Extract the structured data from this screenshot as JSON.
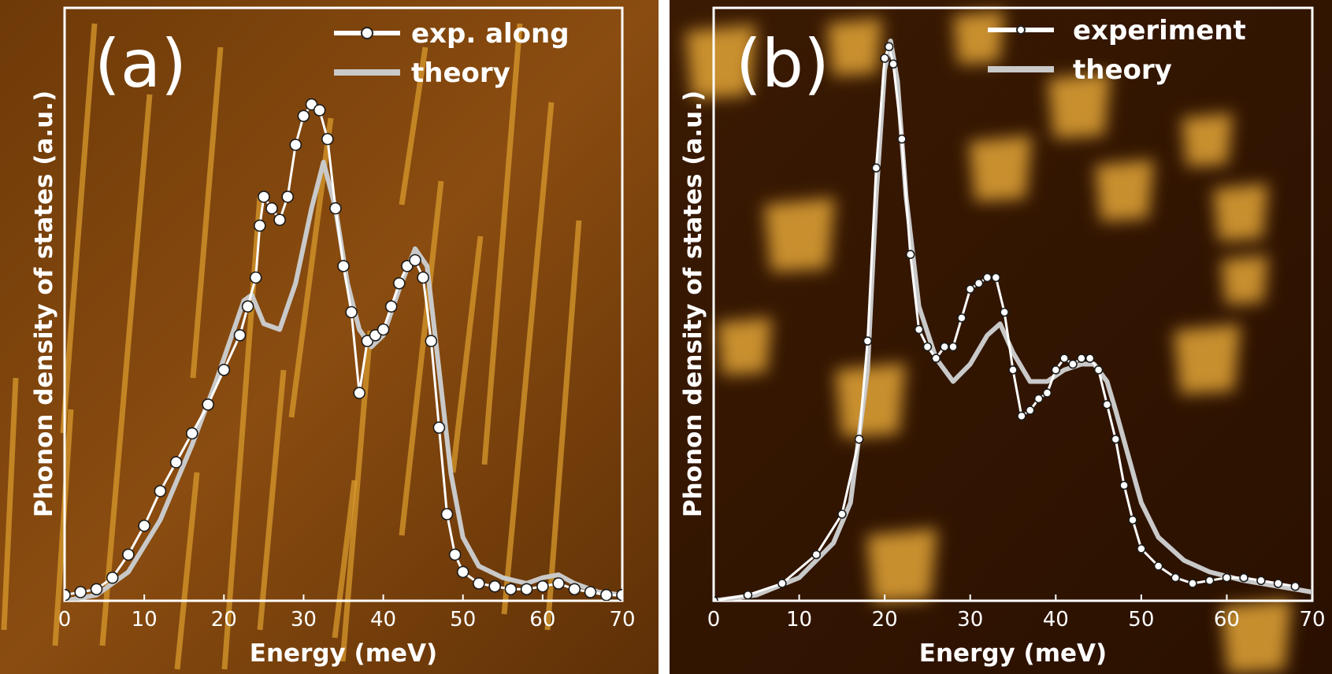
{
  "chart_data": [
    {
      "type": "line",
      "panel_label": "(a)",
      "xlabel": "Energy (meV)",
      "ylabel": "Phonon density of states (a.u.)",
      "xlim": [
        0,
        70
      ],
      "ylim": [
        0,
        1.0
      ],
      "xticks": [
        0,
        10,
        20,
        30,
        40,
        50,
        60,
        70
      ],
      "legend_position": "top-right",
      "background": "scanning-tunneling-microscopy image, orange/brown",
      "colors": {
        "background_dark": "#5a2c05",
        "background_mid": "#8a4a0c",
        "streak": "#d79a2a",
        "experiment": "#ffffff",
        "theory": "#c9c9c9"
      },
      "series": [
        {
          "name": "exp. along",
          "style": "white line with open circle markers",
          "points": [
            [
              0,
              0.01
            ],
            [
              2,
              0.015
            ],
            [
              4,
              0.02
            ],
            [
              6,
              0.04
            ],
            [
              8,
              0.08
            ],
            [
              10,
              0.13
            ],
            [
              12,
              0.19
            ],
            [
              14,
              0.24
            ],
            [
              16,
              0.29
            ],
            [
              18,
              0.34
            ],
            [
              20,
              0.4
            ],
            [
              22,
              0.46
            ],
            [
              23,
              0.51
            ],
            [
              24,
              0.56
            ],
            [
              24.5,
              0.65
            ],
            [
              25,
              0.7
            ],
            [
              26,
              0.68
            ],
            [
              27,
              0.66
            ],
            [
              28,
              0.7
            ],
            [
              29,
              0.79
            ],
            [
              30,
              0.84
            ],
            [
              31,
              0.86
            ],
            [
              32,
              0.85
            ],
            [
              33,
              0.8
            ],
            [
              34,
              0.68
            ],
            [
              35,
              0.58
            ],
            [
              36,
              0.5
            ],
            [
              37,
              0.36
            ],
            [
              38,
              0.45
            ],
            [
              39,
              0.46
            ],
            [
              40,
              0.47
            ],
            [
              41,
              0.51
            ],
            [
              42,
              0.55
            ],
            [
              43,
              0.58
            ],
            [
              44,
              0.59
            ],
            [
              45,
              0.56
            ],
            [
              46,
              0.45
            ],
            [
              47,
              0.3
            ],
            [
              48,
              0.15
            ],
            [
              49,
              0.08
            ],
            [
              50,
              0.05
            ],
            [
              52,
              0.03
            ],
            [
              54,
              0.025
            ],
            [
              56,
              0.02
            ],
            [
              58,
              0.02
            ],
            [
              60,
              0.025
            ],
            [
              62,
              0.03
            ],
            [
              64,
              0.02
            ],
            [
              66,
              0.015
            ],
            [
              68,
              0.01
            ],
            [
              70,
              0.01
            ]
          ]
        },
        {
          "name": "theory",
          "style": "thick light-grey line",
          "points": [
            [
              0,
              0.0
            ],
            [
              4,
              0.01
            ],
            [
              8,
              0.05
            ],
            [
              12,
              0.14
            ],
            [
              16,
              0.27
            ],
            [
              19,
              0.38
            ],
            [
              21,
              0.46
            ],
            [
              22.5,
              0.52
            ],
            [
              23.5,
              0.53
            ],
            [
              25,
              0.48
            ],
            [
              27,
              0.47
            ],
            [
              29,
              0.55
            ],
            [
              31,
              0.68
            ],
            [
              32.5,
              0.76
            ],
            [
              34,
              0.68
            ],
            [
              35.5,
              0.55
            ],
            [
              37,
              0.47
            ],
            [
              38.5,
              0.44
            ],
            [
              40,
              0.46
            ],
            [
              42,
              0.54
            ],
            [
              44,
              0.61
            ],
            [
              45.5,
              0.58
            ],
            [
              47,
              0.4
            ],
            [
              48.5,
              0.22
            ],
            [
              50,
              0.11
            ],
            [
              52,
              0.06
            ],
            [
              55,
              0.04
            ],
            [
              58,
              0.03
            ],
            [
              60,
              0.04
            ],
            [
              62,
              0.045
            ],
            [
              64,
              0.03
            ],
            [
              67,
              0.015
            ],
            [
              70,
              0.01
            ]
          ]
        }
      ]
    },
    {
      "type": "line",
      "panel_label": "(b)",
      "xlabel": "Energy (meV)",
      "ylabel": "Phonon density of states (a.u.)",
      "xlim": [
        0,
        70
      ],
      "ylim": [
        0,
        1.0
      ],
      "xticks": [
        0,
        10,
        20,
        30,
        40,
        50,
        60,
        70
      ],
      "legend_position": "top-right",
      "background": "scanning-tunneling-microscopy image with triangular islands",
      "colors": {
        "background_dark": "#2b1200",
        "island": "#e0a030",
        "experiment": "#ffffff",
        "theory": "#c9c9c9"
      },
      "series": [
        {
          "name": "experiment",
          "style": "white line with small dot markers",
          "points": [
            [
              0,
              0.0
            ],
            [
              4,
              0.01
            ],
            [
              8,
              0.03
            ],
            [
              12,
              0.08
            ],
            [
              15,
              0.15
            ],
            [
              17,
              0.28
            ],
            [
              18,
              0.45
            ],
            [
              19,
              0.75
            ],
            [
              20,
              0.94
            ],
            [
              20.5,
              0.96
            ],
            [
              21,
              0.93
            ],
            [
              22,
              0.8
            ],
            [
              23,
              0.6
            ],
            [
              24,
              0.47
            ],
            [
              25,
              0.44
            ],
            [
              26,
              0.42
            ],
            [
              27,
              0.44
            ],
            [
              28,
              0.44
            ],
            [
              29,
              0.49
            ],
            [
              30,
              0.54
            ],
            [
              31,
              0.55
            ],
            [
              32,
              0.56
            ],
            [
              33,
              0.56
            ],
            [
              34,
              0.5
            ],
            [
              35,
              0.4
            ],
            [
              36,
              0.32
            ],
            [
              37,
              0.33
            ],
            [
              38,
              0.35
            ],
            [
              39,
              0.36
            ],
            [
              40,
              0.4
            ],
            [
              41,
              0.42
            ],
            [
              42,
              0.41
            ],
            [
              43,
              0.42
            ],
            [
              44,
              0.42
            ],
            [
              45,
              0.4
            ],
            [
              46,
              0.34
            ],
            [
              47,
              0.28
            ],
            [
              48,
              0.2
            ],
            [
              49,
              0.14
            ],
            [
              50,
              0.09
            ],
            [
              52,
              0.06
            ],
            [
              54,
              0.04
            ],
            [
              56,
              0.03
            ],
            [
              58,
              0.035
            ],
            [
              60,
              0.04
            ],
            [
              62,
              0.04
            ],
            [
              64,
              0.035
            ],
            [
              66,
              0.03
            ],
            [
              68,
              0.025
            ]
          ]
        },
        {
          "name": "theory",
          "style": "thick light-grey line",
          "points": [
            [
              0,
              0.0
            ],
            [
              5,
              0.01
            ],
            [
              10,
              0.04
            ],
            [
              14,
              0.1
            ],
            [
              16,
              0.17
            ],
            [
              18,
              0.4
            ],
            [
              19,
              0.7
            ],
            [
              20,
              0.92
            ],
            [
              20.7,
              0.97
            ],
            [
              21.5,
              0.9
            ],
            [
              22.5,
              0.7
            ],
            [
              24,
              0.51
            ],
            [
              26,
              0.42
            ],
            [
              28,
              0.38
            ],
            [
              30,
              0.41
            ],
            [
              32,
              0.46
            ],
            [
              33.5,
              0.48
            ],
            [
              35,
              0.43
            ],
            [
              37,
              0.38
            ],
            [
              39,
              0.38
            ],
            [
              41,
              0.4
            ],
            [
              43,
              0.41
            ],
            [
              44.5,
              0.41
            ],
            [
              46,
              0.38
            ],
            [
              47,
              0.33
            ],
            [
              48.5,
              0.25
            ],
            [
              50,
              0.17
            ],
            [
              52,
              0.11
            ],
            [
              55,
              0.07
            ],
            [
              58,
              0.05
            ],
            [
              62,
              0.035
            ],
            [
              66,
              0.025
            ],
            [
              70,
              0.015
            ]
          ]
        }
      ]
    }
  ]
}
